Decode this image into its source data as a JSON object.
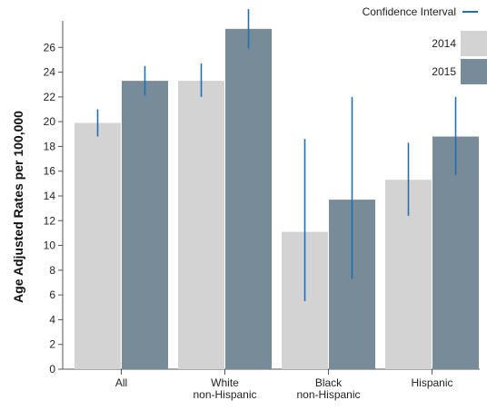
{
  "chart_data": {
    "type": "bar",
    "categories": [
      [
        "All"
      ],
      [
        "White",
        "non-Hispanic"
      ],
      [
        "Black",
        "non-Hispanic"
      ],
      [
        "Hispanic"
      ]
    ],
    "series": [
      {
        "name": "2014",
        "color": "#d3d3d3",
        "values": [
          19.9,
          23.3,
          11.1,
          15.3
        ],
        "ci_low": [
          18.8,
          22.0,
          5.5,
          12.4
        ],
        "ci_high": [
          21.0,
          24.7,
          18.6,
          18.3
        ]
      },
      {
        "name": "2015",
        "color": "#778c98",
        "values": [
          23.3,
          27.5,
          13.7,
          18.8
        ],
        "ci_low": [
          22.1,
          25.9,
          7.3,
          15.7
        ],
        "ci_high": [
          24.5,
          29.1,
          22.0,
          22.0
        ]
      }
    ],
    "ci_legend_label": "Confidence Interval",
    "ci_color": "#1f6fb2",
    "ylabel": "Age Adjusted Rates per 100,000",
    "ylim": [
      0,
      28
    ],
    "yticks": [
      0,
      2,
      4,
      6,
      8,
      10,
      12,
      14,
      16,
      18,
      20,
      22,
      24,
      26
    ],
    "grid": false,
    "legend_position": "top-right"
  }
}
